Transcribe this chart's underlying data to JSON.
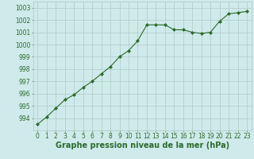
{
  "x": [
    0,
    1,
    2,
    3,
    4,
    5,
    6,
    7,
    8,
    9,
    10,
    11,
    12,
    13,
    14,
    15,
    16,
    17,
    18,
    19,
    20,
    21,
    22,
    23
  ],
  "y": [
    993.5,
    994.1,
    994.8,
    995.5,
    995.9,
    996.5,
    997.0,
    997.6,
    998.2,
    999.0,
    999.5,
    1000.3,
    1001.6,
    1001.6,
    1001.6,
    1001.2,
    1001.2,
    1001.0,
    1000.9,
    1001.0,
    1001.9,
    1002.5,
    1002.6,
    1002.7
  ],
  "line_color": "#2d6a2d",
  "marker": "D",
  "marker_size": 2,
  "background_color": "#ceeaea",
  "grid_color": "#b0c8c8",
  "xlabel": "Graphe pression niveau de la mer (hPa)",
  "xlabel_fontsize": 7,
  "xlabel_color": "#2d6a2d",
  "ylim": [
    993,
    1003.5
  ],
  "xlim": [
    -0.5,
    23.5
  ],
  "yticks": [
    994,
    995,
    996,
    997,
    998,
    999,
    1000,
    1001,
    1002,
    1003
  ],
  "xticks": [
    0,
    1,
    2,
    3,
    4,
    5,
    6,
    7,
    8,
    9,
    10,
    11,
    12,
    13,
    14,
    15,
    16,
    17,
    18,
    19,
    20,
    21,
    22,
    23
  ],
  "tick_fontsize": 5.5,
  "tick_color": "#2d6a2d",
  "linewidth": 0.8
}
